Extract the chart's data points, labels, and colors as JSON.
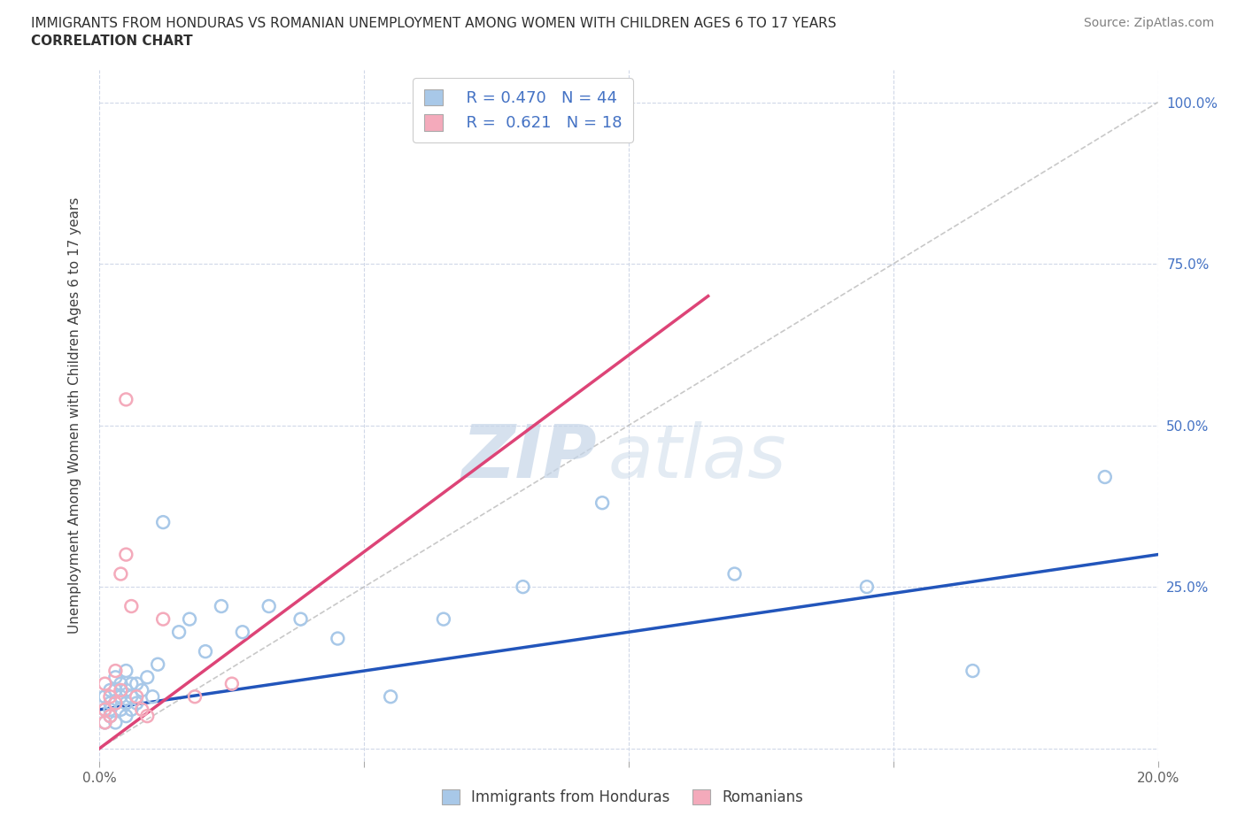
{
  "title_line1": "IMMIGRANTS FROM HONDURAS VS ROMANIAN UNEMPLOYMENT AMONG WOMEN WITH CHILDREN AGES 6 TO 17 YEARS",
  "title_line2": "CORRELATION CHART",
  "source": "Source: ZipAtlas.com",
  "ylabel": "Unemployment Among Women with Children Ages 6 to 17 years",
  "xlim": [
    0.0,
    0.2
  ],
  "ylim": [
    -0.02,
    1.05
  ],
  "blue_R": 0.47,
  "blue_N": 44,
  "pink_R": 0.621,
  "pink_N": 18,
  "blue_color": "#a8c8e8",
  "pink_color": "#f4aabb",
  "blue_line_color": "#2255bb",
  "pink_line_color": "#dd4477",
  "diagonal_color": "#bbbbbb",
  "watermark_zip": "ZIP",
  "watermark_atlas": "atlas",
  "title_color": "#303030",
  "axis_label_color": "#404040",
  "tick_color_right": "#4472c4",
  "grid_color": "#d0d8e8",
  "legend_R_color": "#4472c4",
  "blue_scatter_x": [
    0.001,
    0.001,
    0.001,
    0.002,
    0.002,
    0.002,
    0.002,
    0.003,
    0.003,
    0.003,
    0.003,
    0.004,
    0.004,
    0.004,
    0.005,
    0.005,
    0.005,
    0.005,
    0.006,
    0.006,
    0.006,
    0.007,
    0.007,
    0.008,
    0.009,
    0.01,
    0.011,
    0.012,
    0.015,
    0.017,
    0.02,
    0.023,
    0.027,
    0.032,
    0.038,
    0.045,
    0.055,
    0.065,
    0.08,
    0.095,
    0.12,
    0.145,
    0.165,
    0.19
  ],
  "blue_scatter_y": [
    0.04,
    0.06,
    0.08,
    0.05,
    0.07,
    0.09,
    0.06,
    0.04,
    0.07,
    0.09,
    0.11,
    0.06,
    0.08,
    0.1,
    0.05,
    0.07,
    0.09,
    0.12,
    0.06,
    0.08,
    0.1,
    0.07,
    0.1,
    0.09,
    0.11,
    0.08,
    0.13,
    0.35,
    0.18,
    0.2,
    0.15,
    0.22,
    0.18,
    0.22,
    0.2,
    0.17,
    0.08,
    0.2,
    0.25,
    0.38,
    0.27,
    0.25,
    0.12,
    0.42
  ],
  "pink_scatter_x": [
    0.001,
    0.001,
    0.001,
    0.002,
    0.002,
    0.003,
    0.003,
    0.004,
    0.004,
    0.005,
    0.005,
    0.006,
    0.007,
    0.008,
    0.009,
    0.012,
    0.018,
    0.025
  ],
  "pink_scatter_y": [
    0.04,
    0.06,
    0.1,
    0.05,
    0.08,
    0.07,
    0.12,
    0.09,
    0.27,
    0.3,
    0.54,
    0.22,
    0.08,
    0.06,
    0.05,
    0.2,
    0.08,
    0.1
  ],
  "blue_trend_x": [
    0.0,
    0.2
  ],
  "blue_trend_y": [
    0.06,
    0.3
  ],
  "pink_trend_x": [
    0.0,
    0.115
  ],
  "pink_trend_y": [
    0.0,
    0.7
  ]
}
